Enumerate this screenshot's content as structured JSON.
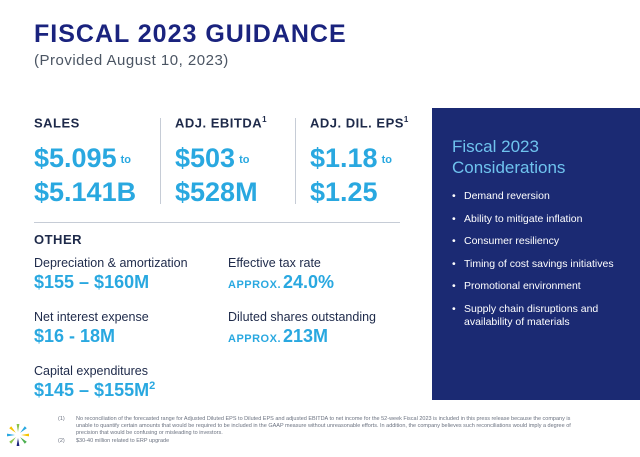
{
  "title": "FISCAL 2023 GUIDANCE",
  "subtitle": "(Provided August 10, 2023)",
  "metrics": [
    {
      "label": "SALES",
      "sup": "",
      "low": "$5.095",
      "to": "to",
      "high": "$5.141B"
    },
    {
      "label": "ADJ. EBITDA",
      "sup": "1",
      "low": "$503",
      "to": "to",
      "high": "$528M"
    },
    {
      "label": "ADJ. DIL. EPS",
      "sup": "1",
      "low": "$1.18",
      "to": "to",
      "high": "$1.25"
    }
  ],
  "other": {
    "heading": "OTHER",
    "items": [
      {
        "label": "Depreciation & amortization",
        "value": "$155 – $160M"
      },
      {
        "label": "Effective tax rate",
        "prefix": "APPROX.",
        "value": "24.0%"
      },
      {
        "label": "Net interest expense",
        "value": "$16 - 18M"
      },
      {
        "label": "Diluted shares outstanding",
        "prefix": "APPROX.",
        "value": "213M"
      },
      {
        "label": "Capital expenditures",
        "value": "$145 – $155M",
        "sup": "2"
      }
    ]
  },
  "considerations": {
    "title": "Fiscal 2023 Considerations",
    "items": [
      "Demand reversion",
      "Ability to mitigate inflation",
      "Consumer resiliency",
      "Timing of cost savings initiatives",
      "Promotional environment",
      "Supply chain disruptions and availability of materials"
    ]
  },
  "footnotes": [
    {
      "num": "(1)",
      "text": "No reconciliation of the forecasted range for Adjusted Diluted EPS to Diluted EPS and adjusted EBITDA to net income for the 52-week Fiscal 2023 is included in this press release because the company is unable to quantify certain amounts that would be required to be included in the GAAP measure without unreasonable efforts. In addition, the company believes such reconciliations would imply a degree of precision that would be confusing or misleading to investors."
    },
    {
      "num": "(2)",
      "text": "$30-40 million related to ERP upgrade"
    }
  ],
  "colors": {
    "navy": "#1a237e",
    "accent": "#29a8e0",
    "panel": "#1b2a73"
  },
  "logo_icon": "burst-logo-icon"
}
